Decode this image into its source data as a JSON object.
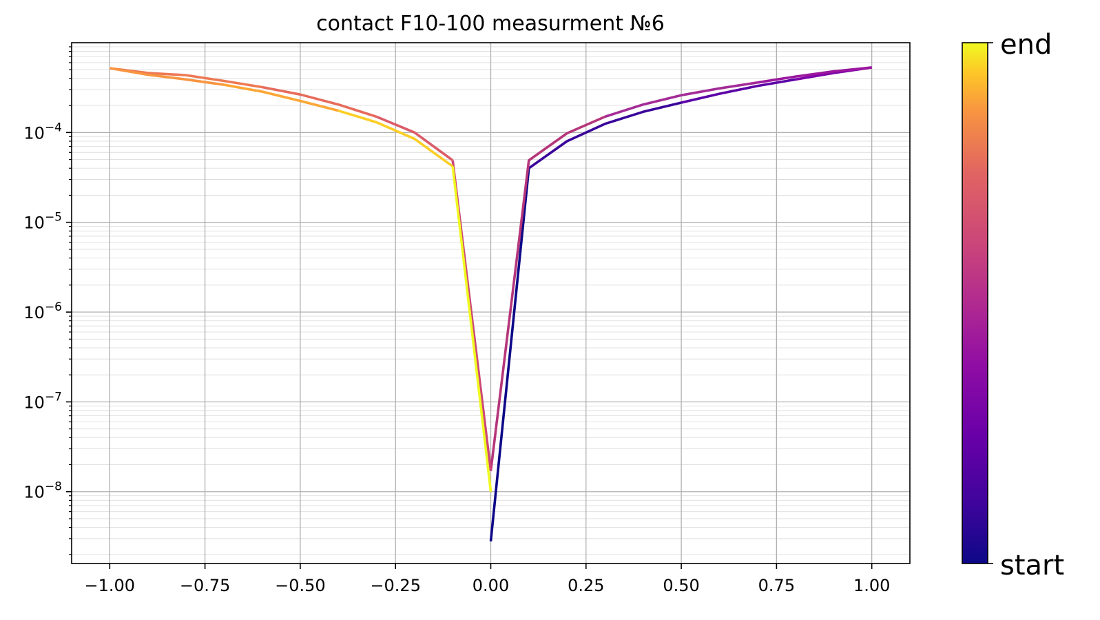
{
  "chart_data": {
    "type": "line",
    "title": "contact F10-100 measurment №6",
    "xlabel": "",
    "ylabel": "",
    "y_scale": "log",
    "xlim": [
      -1.1,
      1.1
    ],
    "ylim_log10": [
      -8.8,
      -3.0
    ],
    "grid": true,
    "x_ticks": [
      {
        "value": -1.0,
        "label": "−1.00"
      },
      {
        "value": -0.75,
        "label": "−0.75"
      },
      {
        "value": -0.5,
        "label": "−0.50"
      },
      {
        "value": -0.25,
        "label": "−0.25"
      },
      {
        "value": 0.0,
        "label": "0.00"
      },
      {
        "value": 0.25,
        "label": "0.25"
      },
      {
        "value": 0.5,
        "label": "0.50"
      },
      {
        "value": 0.75,
        "label": "0.75"
      },
      {
        "value": 1.0,
        "label": "1.00"
      }
    ],
    "y_ticks": [
      {
        "exp": -4,
        "base": "10",
        "sup": "−4"
      },
      {
        "exp": -5,
        "base": "10",
        "sup": "−5"
      },
      {
        "exp": -6,
        "base": "10",
        "sup": "−6"
      },
      {
        "exp": -7,
        "base": "10",
        "sup": "−7"
      },
      {
        "exp": -8,
        "base": "10",
        "sup": "−8"
      }
    ],
    "colormap": "plasma",
    "colorbar": {
      "top_label": "end",
      "bottom_label": "start"
    },
    "series": [
      {
        "x": [
          0.0,
          0.1
        ],
        "y": [
          2.8e-09,
          4e-05
        ],
        "color": "#0d0887"
      },
      {
        "x": [
          0.1,
          0.2,
          0.3,
          0.4,
          0.5
        ],
        "y": [
          4e-05,
          8e-05,
          0.000125,
          0.00017,
          0.000215
        ],
        "color": "#3a049a"
      },
      {
        "x": [
          0.5,
          0.6,
          0.7,
          0.8
        ],
        "y": [
          0.000215,
          0.00027,
          0.00033,
          0.00039
        ],
        "color": "#5c01a6"
      },
      {
        "x": [
          0.8,
          0.9,
          1.0
        ],
        "y": [
          0.00039,
          0.00046,
          0.00053
        ],
        "color": "#7e03a8"
      },
      {
        "x": [
          1.0,
          0.9,
          0.8,
          0.7
        ],
        "y": [
          0.00053,
          0.00048,
          0.00042,
          0.00036
        ],
        "color": "#9c179e"
      },
      {
        "x": [
          0.7,
          0.6,
          0.5,
          0.4,
          0.3
        ],
        "y": [
          0.00036,
          0.00031,
          0.00026,
          0.000205,
          0.00015
        ],
        "color": "#a42c97"
      },
      {
        "x": [
          0.3,
          0.2,
          0.1,
          0.0
        ],
        "y": [
          0.00015,
          9.8e-05,
          4.9e-05,
          1.7e-08
        ],
        "color": "#b5367a"
      },
      {
        "x": [
          0.0,
          -0.1
        ],
        "y": [
          1.7e-08,
          4.9e-05
        ],
        "color": "#cc4778"
      },
      {
        "x": [
          -0.1,
          -0.2,
          -0.3
        ],
        "y": [
          4.9e-05,
          0.0001,
          0.00015
        ],
        "color": "#db5c68"
      },
      {
        "x": [
          -0.3,
          -0.4,
          -0.5,
          -0.6
        ],
        "y": [
          0.00015,
          0.000205,
          0.000265,
          0.00032
        ],
        "color": "#e66c5c"
      },
      {
        "x": [
          -0.6,
          -0.7,
          -0.8,
          -0.9,
          -1.0
        ],
        "y": [
          0.00032,
          0.000375,
          0.000435,
          0.00046,
          0.00052
        ],
        "color": "#ed7953"
      },
      {
        "x": [
          -1.0,
          -0.9,
          -0.8,
          -0.7
        ],
        "y": [
          0.00052,
          0.00044,
          0.00039,
          0.00034
        ],
        "color": "#f89540"
      },
      {
        "x": [
          -0.7,
          -0.6,
          -0.5,
          -0.4
        ],
        "y": [
          0.00034,
          0.000285,
          0.000225,
          0.000175
        ],
        "color": "#fca636"
      },
      {
        "x": [
          -0.4,
          -0.3,
          -0.2,
          -0.1
        ],
        "y": [
          0.000175,
          0.00013,
          8.5e-05,
          4.2e-05
        ],
        "color": "#fcce25"
      },
      {
        "x": [
          -0.1,
          0.0
        ],
        "y": [
          4.2e-05,
          1e-08
        ],
        "color": "#f0f921"
      }
    ]
  }
}
